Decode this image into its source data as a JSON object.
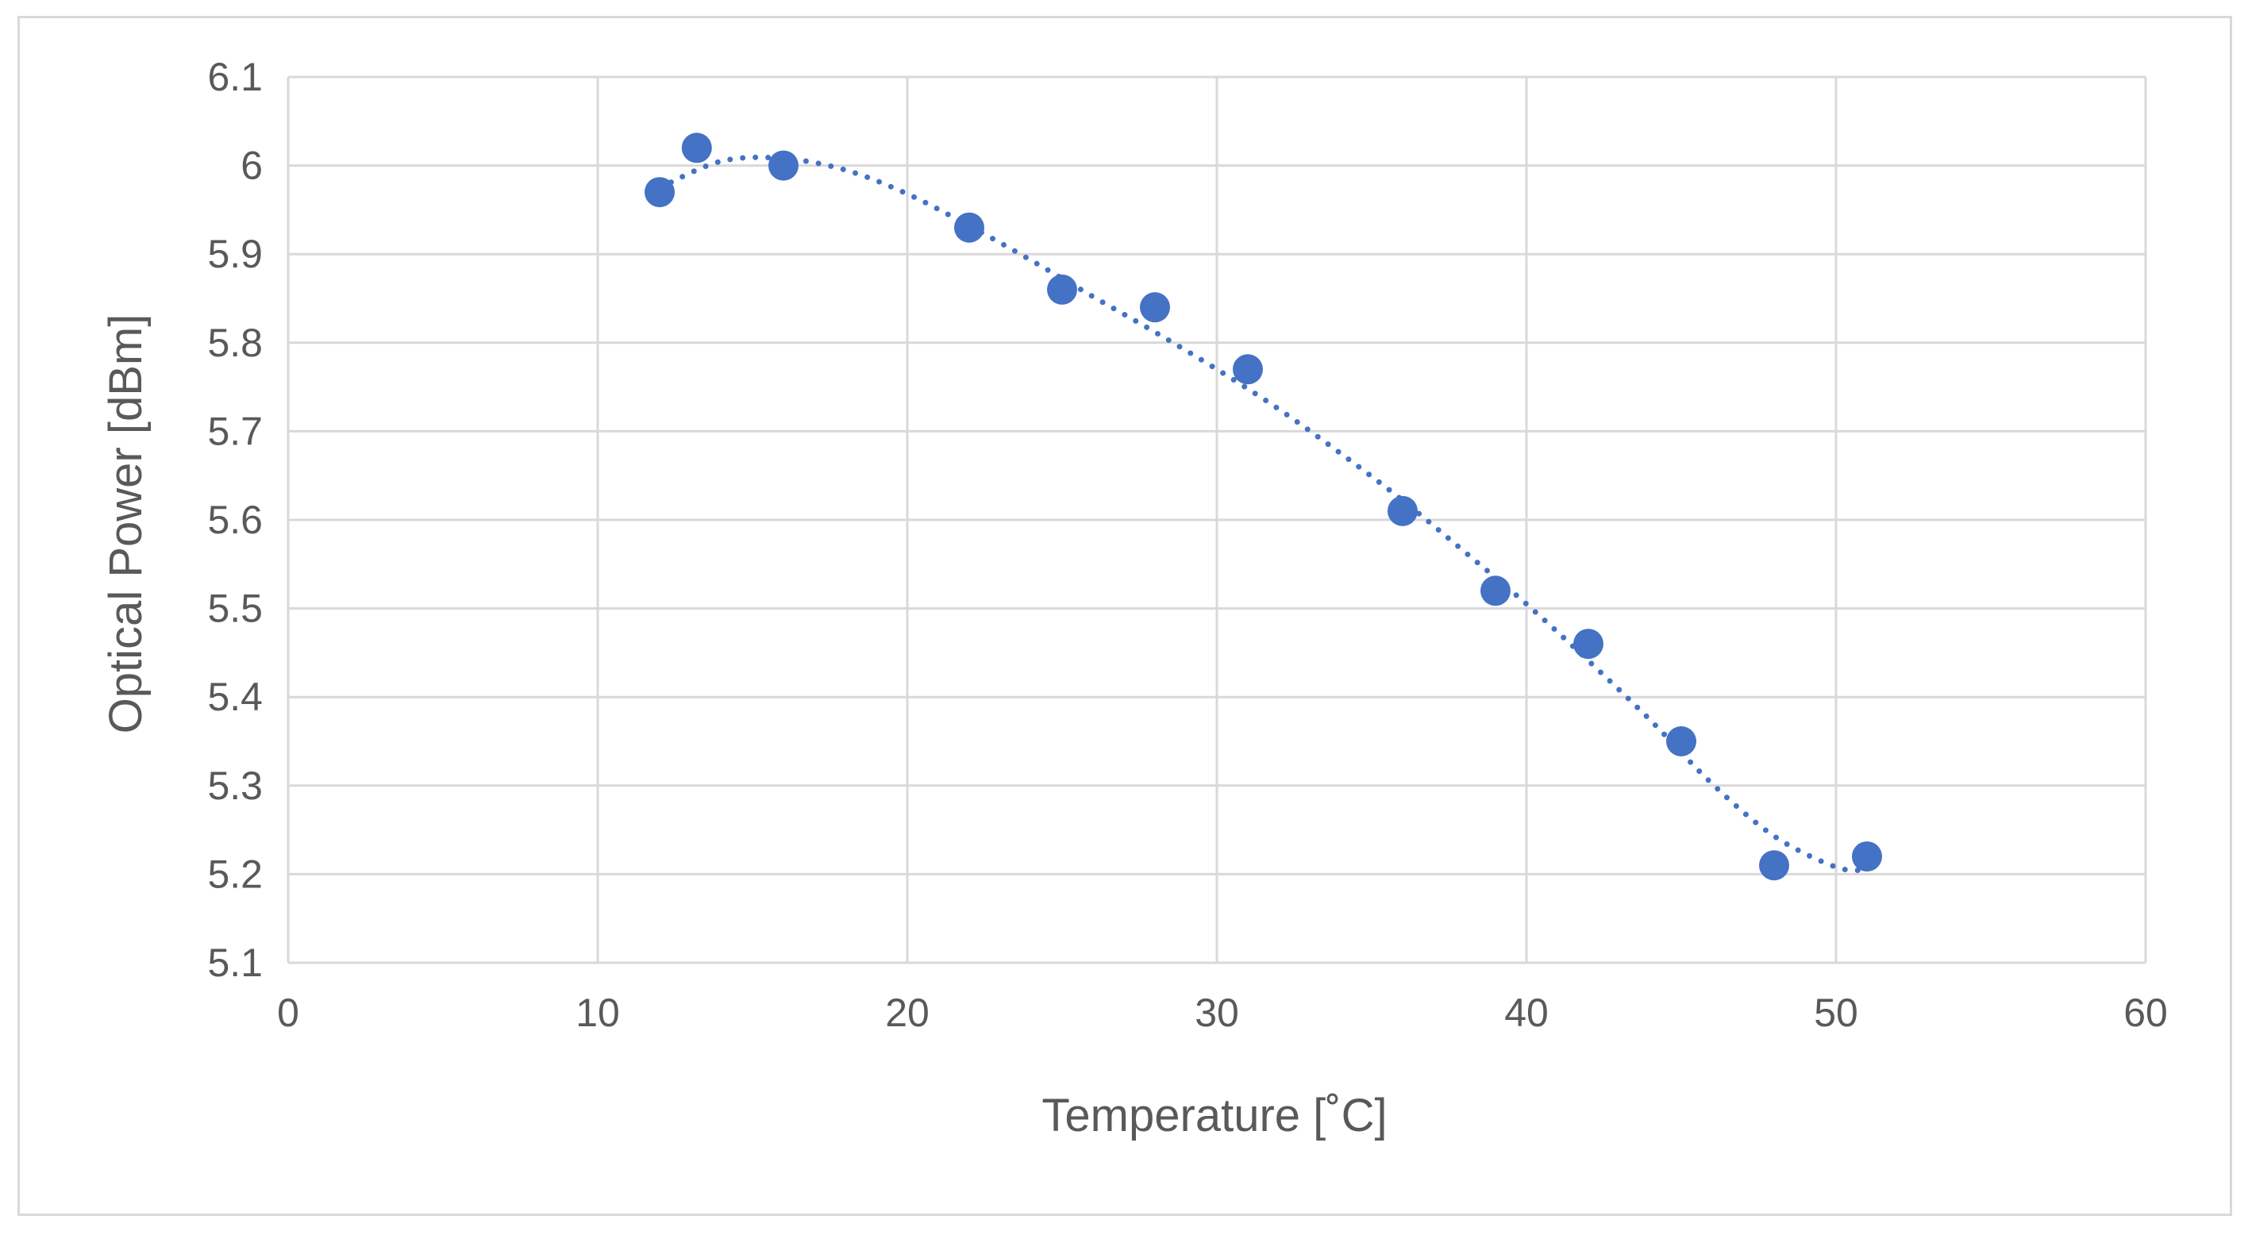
{
  "chart_data": {
    "type": "scatter",
    "title": "",
    "xlabel": "Temperature [˚C]",
    "ylabel": "Optical Power [dBm]",
    "xlim": [
      0,
      60
    ],
    "ylim": [
      5.1,
      6.1
    ],
    "x_ticks": [
      0,
      10,
      20,
      30,
      40,
      50,
      60
    ],
    "y_ticks": [
      5.1,
      5.2,
      5.3,
      5.4,
      5.5,
      5.6,
      5.7,
      5.8,
      5.9,
      6.0,
      6.1
    ],
    "x_tick_labels": [
      "0",
      "10",
      "20",
      "30",
      "40",
      "50",
      "60"
    ],
    "y_tick_labels": [
      "5.1",
      "5.2",
      "5.3",
      "5.4",
      "5.5",
      "5.6",
      "5.7",
      "5.8",
      "5.9",
      "6",
      "6.1"
    ],
    "grid": true,
    "series": [
      {
        "name": "Optical Power",
        "color": "#4472C4",
        "x": [
          12,
          13.2,
          16,
          22,
          25,
          28,
          31,
          36,
          39,
          42,
          45,
          48,
          51
        ],
        "y": [
          5.97,
          6.02,
          6.0,
          5.93,
          5.86,
          5.84,
          5.77,
          5.61,
          5.52,
          5.46,
          5.35,
          5.21,
          5.22
        ]
      }
    ],
    "trendline": {
      "type": "polynomial",
      "style": "dotted",
      "color": "#4472C4",
      "x": [
        12,
        14,
        16,
        18,
        20,
        22,
        24,
        26,
        28,
        30,
        32,
        34,
        36,
        38,
        40,
        42,
        44,
        46,
        48,
        50,
        51
      ],
      "y": [
        5.975,
        6.005,
        6.008,
        5.995,
        5.968,
        5.932,
        5.893,
        5.852,
        5.812,
        5.77,
        5.725,
        5.675,
        5.622,
        5.564,
        5.505,
        5.441,
        5.374,
        5.302,
        5.243,
        5.208,
        5.205
      ]
    }
  }
}
